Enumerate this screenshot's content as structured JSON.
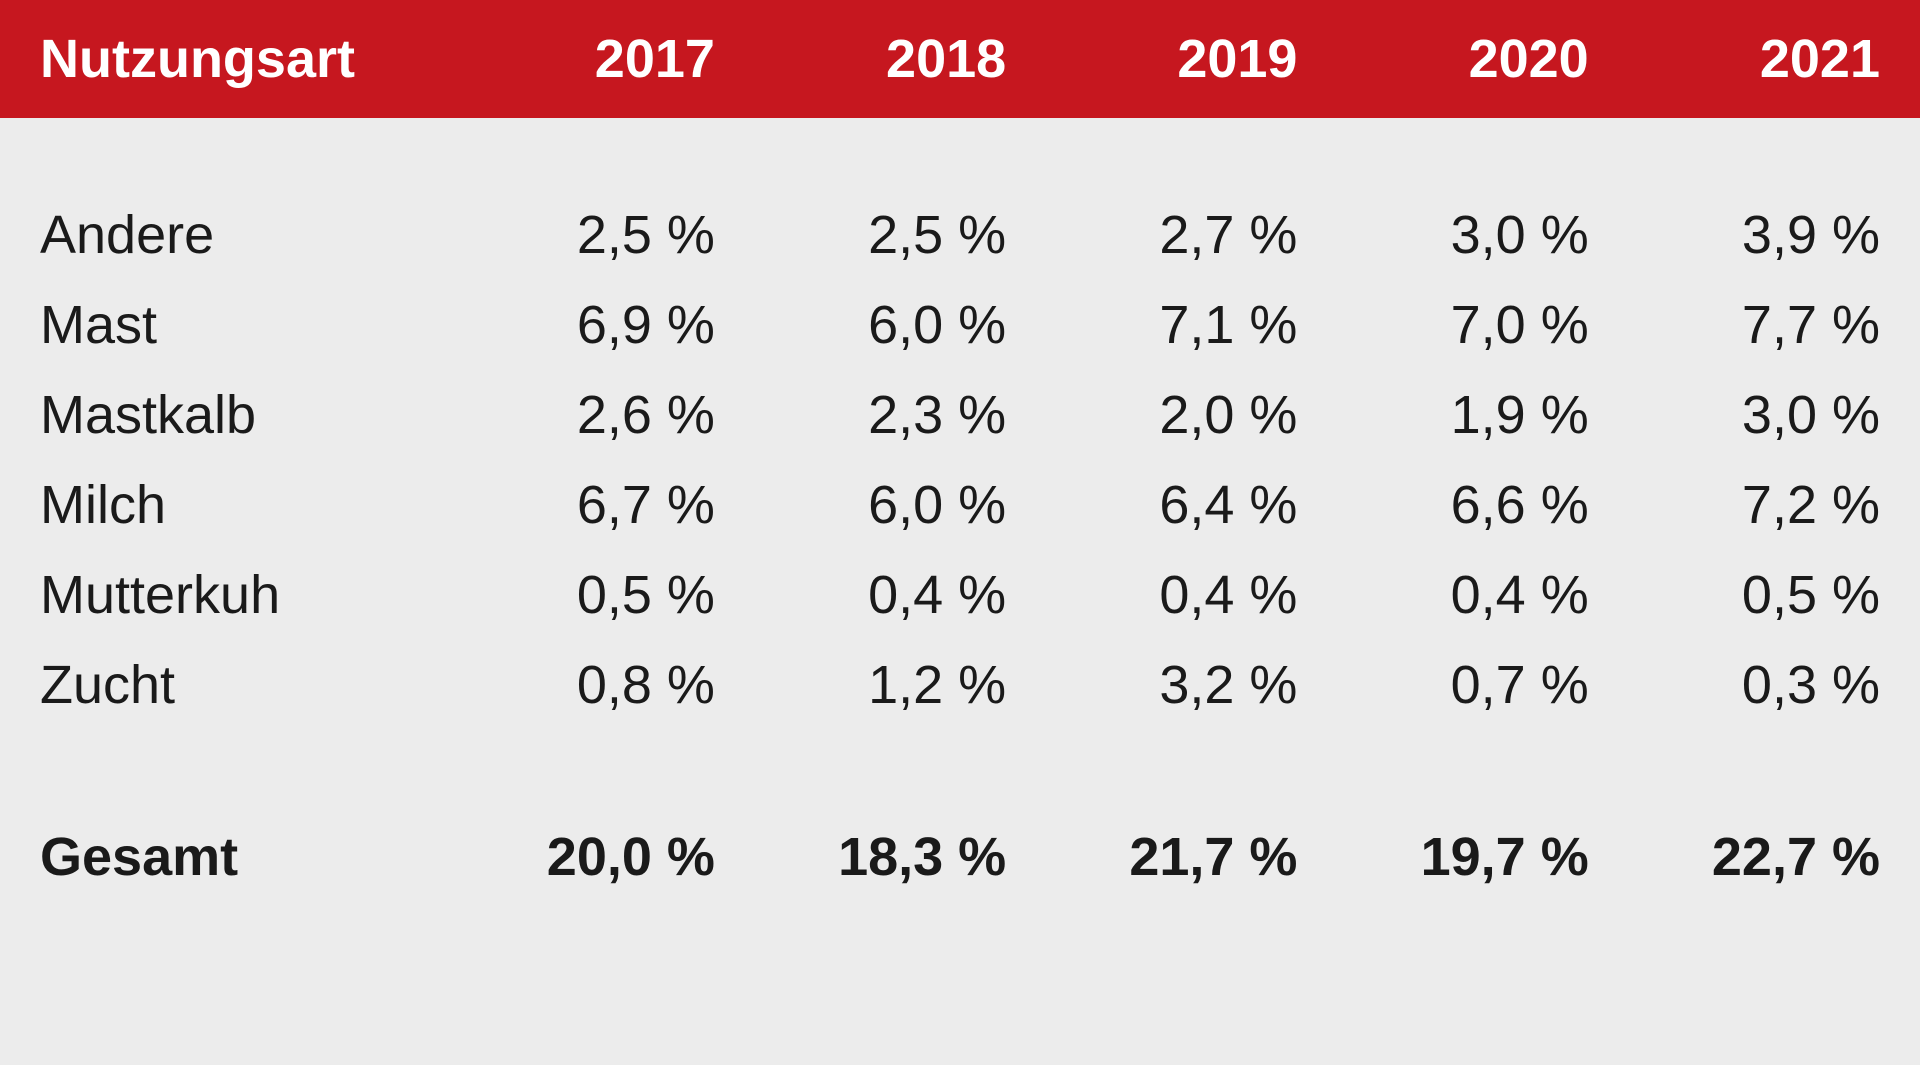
{
  "table": {
    "type": "table",
    "header_bg": "#c6171f",
    "header_fg": "#ffffff",
    "body_bg": "#ececec",
    "body_fg": "#1a1a1a",
    "font_size_pt": 40,
    "row_label_header": "Nutzungsart",
    "columns": [
      "2017",
      "2018",
      "2019",
      "2020",
      "2021"
    ],
    "rows": [
      {
        "label": "Andere",
        "values": [
          "2,5 %",
          "2,5 %",
          "2,7 %",
          "3,0 %",
          "3,9 %"
        ]
      },
      {
        "label": "Mast",
        "values": [
          "6,9 %",
          "6,0 %",
          "7,1 %",
          "7,0 %",
          "7,7 %"
        ]
      },
      {
        "label": "Mastkalb",
        "values": [
          "2,6 %",
          "2,3 %",
          "2,0 %",
          "1,9 %",
          "3,0 %"
        ]
      },
      {
        "label": "Milch",
        "values": [
          "6,7 %",
          "6,0 %",
          "6,4 %",
          "6,6 %",
          "7,2 %"
        ]
      },
      {
        "label": "Mutterkuh",
        "values": [
          "0,5 %",
          "0,4 %",
          "0,4 %",
          "0,4 %",
          "0,5 %"
        ]
      },
      {
        "label": "Zucht",
        "values": [
          "0,8 %",
          "1,2 %",
          "3,2 %",
          "0,7 %",
          "0,3 %"
        ]
      }
    ],
    "total": {
      "label": "Gesamt",
      "values": [
        "20,0 %",
        "18,3 %",
        "21,7 %",
        "19,7 %",
        "22,7 %"
      ]
    }
  }
}
